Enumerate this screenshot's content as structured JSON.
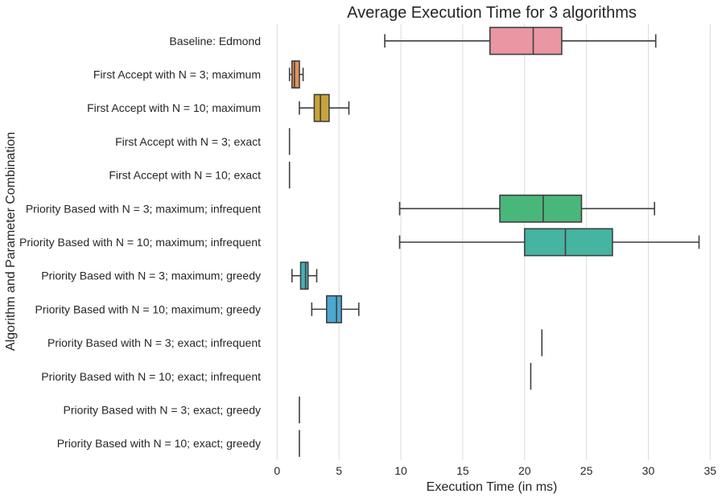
{
  "chart_data": {
    "type": "box",
    "orientation": "horizontal",
    "title": "Average Execution Time for 3 algorithms",
    "xlabel": "Execution Time (in ms)",
    "ylabel": "Algorithm and Parameter Combination",
    "xlim": [
      -0.8,
      35.5
    ],
    "xticks": [
      0,
      5,
      10,
      15,
      20,
      25,
      30,
      35
    ],
    "grid": "vertical",
    "categories": [
      "Baseline: Edmond",
      "First Accept with N = 3; maximum",
      "First Accept with N = 10; maximum",
      "First Accept with N = 3; exact",
      "First Accept with N = 10; exact",
      "Priority Based with N = 3; maximum; infrequent",
      "Priority Based with N = 10; maximum; infrequent",
      "Priority Based with N = 3; maximum; greedy",
      "Priority Based with N = 10; maximum; greedy",
      "Priority Based with N = 3; exact; infrequent",
      "Priority Based with N = 10; exact; infrequent",
      "Priority Based with N = 3; exact; greedy",
      "Priority Based with N = 10; exact; greedy"
    ],
    "boxes": [
      {
        "whisker_low": 8.7,
        "q1": 17.2,
        "median": 20.7,
        "q3": 23.0,
        "whisker_high": 30.6,
        "color": "#ea96a3"
      },
      {
        "whisker_low": 1.0,
        "q1": 1.2,
        "median": 1.4,
        "q3": 1.8,
        "whisker_high": 2.1,
        "color": "#e1925c"
      },
      {
        "whisker_low": 1.8,
        "q1": 3.0,
        "median": 3.5,
        "q3": 4.2,
        "whisker_high": 5.8,
        "color": "#c8a33a"
      },
      {
        "whisker_low": 1.0,
        "q1": 1.0,
        "median": 1.0,
        "q3": 1.0,
        "whisker_high": 1.0,
        "color": "#9aa93c"
      },
      {
        "whisker_low": 1.0,
        "q1": 1.0,
        "median": 1.0,
        "q3": 1.0,
        "whisker_high": 1.0,
        "color": "#6eb33f"
      },
      {
        "whisker_low": 9.9,
        "q1": 18.0,
        "median": 21.5,
        "q3": 24.6,
        "whisker_high": 30.5,
        "color": "#4ab77a"
      },
      {
        "whisker_low": 9.9,
        "q1": 20.0,
        "median": 23.3,
        "q3": 27.1,
        "whisker_high": 34.1,
        "color": "#45b4a0"
      },
      {
        "whisker_low": 1.2,
        "q1": 1.9,
        "median": 2.3,
        "q3": 2.5,
        "whisker_high": 3.2,
        "color": "#47b0b8"
      },
      {
        "whisker_low": 2.8,
        "q1": 4.0,
        "median": 4.8,
        "q3": 5.2,
        "whisker_high": 6.6,
        "color": "#4aa9d1"
      },
      {
        "whisker_low": 21.4,
        "q1": 21.4,
        "median": 21.4,
        "q3": 21.4,
        "whisker_high": 21.4,
        "color": "#7ea8e6"
      },
      {
        "whisker_low": 20.5,
        "q1": 20.5,
        "median": 20.5,
        "q3": 20.5,
        "whisker_high": 20.5,
        "color": "#b599ec"
      },
      {
        "whisker_low": 1.8,
        "q1": 1.8,
        "median": 1.8,
        "q3": 1.8,
        "whisker_high": 1.8,
        "color": "#e38ee4"
      },
      {
        "whisker_low": 1.8,
        "q1": 1.8,
        "median": 1.8,
        "q3": 1.8,
        "whisker_high": 1.8,
        "color": "#f08cc0"
      }
    ]
  }
}
